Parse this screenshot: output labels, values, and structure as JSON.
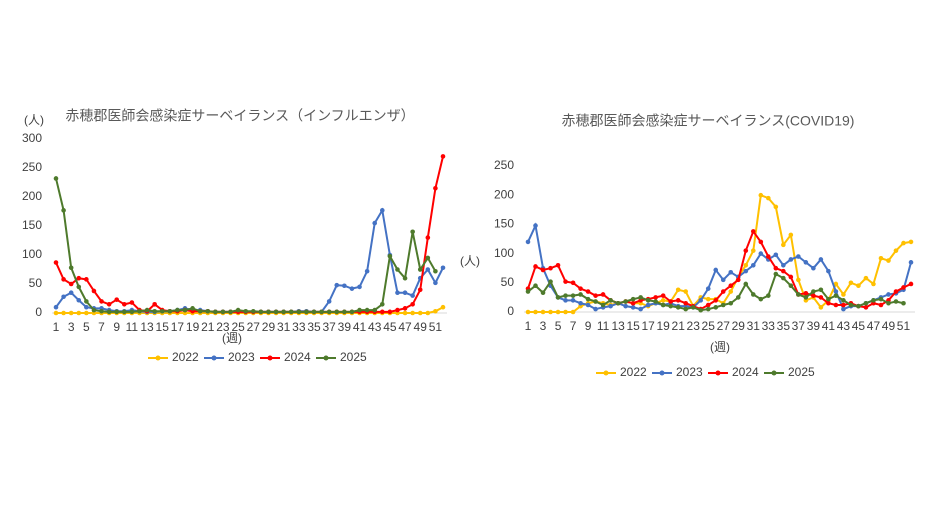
{
  "chart_data": [
    {
      "type": "line",
      "title": "赤穂郡医師会感染症サーベイランス（インフルエンザ）",
      "y_label": "(人)",
      "x_label": "(週)",
      "categories": [
        1,
        null,
        3,
        null,
        5,
        null,
        7,
        null,
        9,
        null,
        11,
        null,
        13,
        null,
        15,
        null,
        17,
        null,
        19,
        null,
        21,
        null,
        23,
        null,
        25,
        null,
        27,
        null,
        29,
        null,
        31,
        null,
        33,
        null,
        35,
        null,
        37,
        null,
        39,
        null,
        41,
        null,
        43,
        null,
        45,
        null,
        47,
        null,
        49,
        null,
        51,
        null
      ],
      "ylim": [
        0,
        300
      ],
      "yticks": [
        0,
        50,
        100,
        150,
        200,
        250,
        300
      ],
      "grid": false,
      "legend": "bottom",
      "series": [
        {
          "name": "2022",
          "color": "#ffc000",
          "values": [
            0,
            0,
            0,
            0,
            0,
            0,
            0,
            0,
            0,
            0,
            0,
            0,
            0,
            0,
            0,
            0,
            0,
            0,
            0,
            0,
            0,
            0,
            0,
            0,
            0,
            0,
            0,
            0,
            0,
            0,
            0,
            0,
            0,
            0,
            0,
            0,
            0,
            0,
            0,
            0,
            0,
            0,
            0,
            0,
            0,
            0,
            0,
            0,
            0,
            0,
            3,
            10
          ]
        },
        {
          "name": "2023",
          "color": "#4472c4",
          "values": [
            10,
            28,
            35,
            22,
            10,
            8,
            8,
            5,
            3,
            3,
            5,
            3,
            2,
            2,
            3,
            3,
            5,
            8,
            5,
            5,
            3,
            2,
            2,
            2,
            2,
            2,
            2,
            2,
            2,
            2,
            2,
            2,
            3,
            3,
            2,
            2,
            20,
            48,
            47,
            42,
            45,
            72,
            155,
            177,
            100,
            35,
            35,
            30,
            60,
            75,
            52,
            78
          ]
        },
        {
          "name": "2024",
          "color": "#ff0000",
          "values": [
            87,
            58,
            50,
            60,
            58,
            38,
            20,
            15,
            23,
            15,
            18,
            5,
            3,
            15,
            5,
            3,
            3,
            5,
            3,
            3,
            3,
            2,
            2,
            2,
            2,
            2,
            2,
            2,
            2,
            2,
            2,
            2,
            2,
            2,
            2,
            2,
            2,
            2,
            2,
            2,
            2,
            2,
            2,
            2,
            2,
            5,
            8,
            15,
            40,
            130,
            215,
            270
          ]
        },
        {
          "name": "2025",
          "color": "#4e7a2c",
          "values": [
            232,
            177,
            78,
            45,
            20,
            5,
            3,
            2,
            2,
            2,
            2,
            3,
            5,
            3,
            3,
            3,
            5,
            5,
            8,
            3,
            3,
            2,
            2,
            2,
            5,
            3,
            3,
            2,
            2,
            2,
            2,
            2,
            2,
            2,
            2,
            2,
            2,
            2,
            2,
            2,
            5,
            5,
            5,
            15,
            98,
            75,
            60,
            140,
            75,
            95,
            72,
            null
          ]
        }
      ]
    },
    {
      "type": "line",
      "title": "赤穂郡医師会感染症サーベイランス(COVID19)",
      "y_label": "(人)",
      "x_label": "(週)",
      "categories": [
        1,
        null,
        3,
        null,
        5,
        null,
        7,
        null,
        9,
        null,
        11,
        null,
        13,
        null,
        15,
        null,
        17,
        null,
        19,
        null,
        21,
        null,
        23,
        null,
        25,
        null,
        27,
        null,
        29,
        null,
        31,
        null,
        33,
        null,
        35,
        null,
        37,
        null,
        39,
        null,
        41,
        null,
        43,
        null,
        45,
        null,
        47,
        null,
        49,
        null,
        51,
        null
      ],
      "ylim": [
        0,
        250
      ],
      "yticks": [
        0,
        50,
        100,
        150,
        200,
        250
      ],
      "grid": false,
      "legend": "bottom",
      "series": [
        {
          "name": "2022",
          "color": "#ffc000",
          "values": [
            0,
            0,
            0,
            0,
            0,
            0,
            0,
            10,
            15,
            18,
            15,
            12,
            15,
            18,
            15,
            15,
            10,
            15,
            20,
            18,
            38,
            35,
            10,
            25,
            22,
            22,
            15,
            35,
            60,
            80,
            105,
            200,
            195,
            180,
            115,
            132,
            55,
            20,
            25,
            8,
            20,
            48,
            30,
            50,
            45,
            58,
            48,
            92,
            88,
            105,
            118,
            120
          ]
        },
        {
          "name": "2023",
          "color": "#4472c4",
          "values": [
            120,
            148,
            75,
            45,
            25,
            20,
            20,
            15,
            12,
            5,
            8,
            10,
            15,
            10,
            8,
            5,
            12,
            15,
            12,
            15,
            10,
            10,
            8,
            20,
            40,
            72,
            55,
            68,
            60,
            70,
            80,
            100,
            90,
            98,
            80,
            90,
            95,
            85,
            75,
            90,
            70,
            35,
            5,
            10,
            10,
            15,
            20,
            25,
            30,
            32,
            38,
            85
          ]
        },
        {
          "name": "2024",
          "color": "#ff0000",
          "values": [
            40,
            78,
            72,
            75,
            80,
            52,
            50,
            40,
            35,
            28,
            30,
            20,
            15,
            18,
            15,
            20,
            22,
            25,
            28,
            18,
            20,
            15,
            10,
            5,
            12,
            20,
            35,
            45,
            55,
            105,
            138,
            120,
            95,
            75,
            70,
            60,
            30,
            32,
            28,
            25,
            15,
            12,
            12,
            15,
            10,
            8,
            15,
            12,
            20,
            35,
            42,
            48
          ]
        },
        {
          "name": "2025",
          "color": "#4e7a2c",
          "values": [
            35,
            45,
            33,
            52,
            25,
            28,
            28,
            30,
            22,
            18,
            12,
            20,
            15,
            18,
            22,
            25,
            20,
            18,
            12,
            10,
            8,
            5,
            8,
            3,
            5,
            8,
            12,
            15,
            25,
            48,
            30,
            22,
            28,
            65,
            58,
            45,
            30,
            25,
            35,
            38,
            22,
            28,
            20,
            12,
            10,
            15,
            20,
            22,
            15,
            18,
            15,
            null
          ]
        }
      ]
    }
  ]
}
